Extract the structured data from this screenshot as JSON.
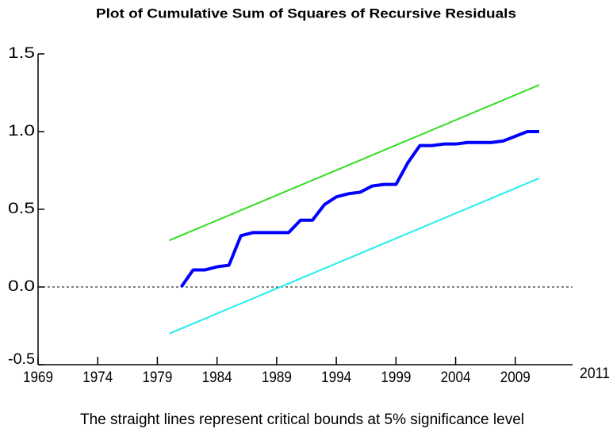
{
  "chart_data": {
    "type": "line",
    "title": "Plot of Cumulative Sum of Squares of Recursive Residuals",
    "footnote": "The straight lines represent critical bounds at 5% significance level",
    "xlim": [
      1969,
      2013.8
    ],
    "ylim": [
      -0.5,
      1.5
    ],
    "xticks": [
      1969,
      1974,
      1979,
      1984,
      1989,
      1994,
      1999,
      2004,
      2009
    ],
    "x_end_label": "2011",
    "yticks": [
      -0.5,
      {
        "value": 0,
        "label": "0.0"
      },
      0.5,
      {
        "value": 1,
        "label": "1.0"
      },
      1.5
    ],
    "reference_line": 0,
    "series": [
      {
        "color": "#0000ff",
        "width": 4,
        "x": [
          1981,
          1982,
          1983,
          1984,
          1985,
          1986,
          1987,
          1988,
          1989,
          1990,
          1991,
          1992,
          1993,
          1994,
          1995,
          1996,
          1997,
          1998,
          1999,
          2000,
          2001,
          2002,
          2003,
          2004,
          2005,
          2006,
          2007,
          2008,
          2009,
          2010,
          2011
        ],
        "values": [
          0.0,
          0.11,
          0.11,
          0.13,
          0.14,
          0.33,
          0.35,
          0.35,
          0.35,
          0.35,
          0.43,
          0.43,
          0.53,
          0.58,
          0.6,
          0.61,
          0.65,
          0.66,
          0.66,
          0.8,
          0.91,
          0.91,
          0.92,
          0.92,
          0.93,
          0.93,
          0.93,
          0.94,
          0.97,
          1.0,
          1.0
        ]
      },
      {
        "color": "#33dd22",
        "width": 2,
        "x": [
          1980,
          2011
        ],
        "values": [
          0.3,
          1.3
        ]
      },
      {
        "color": "#22eeee",
        "width": 2,
        "x": [
          1980,
          2011
        ],
        "values": [
          -0.3,
          0.7
        ]
      }
    ]
  }
}
